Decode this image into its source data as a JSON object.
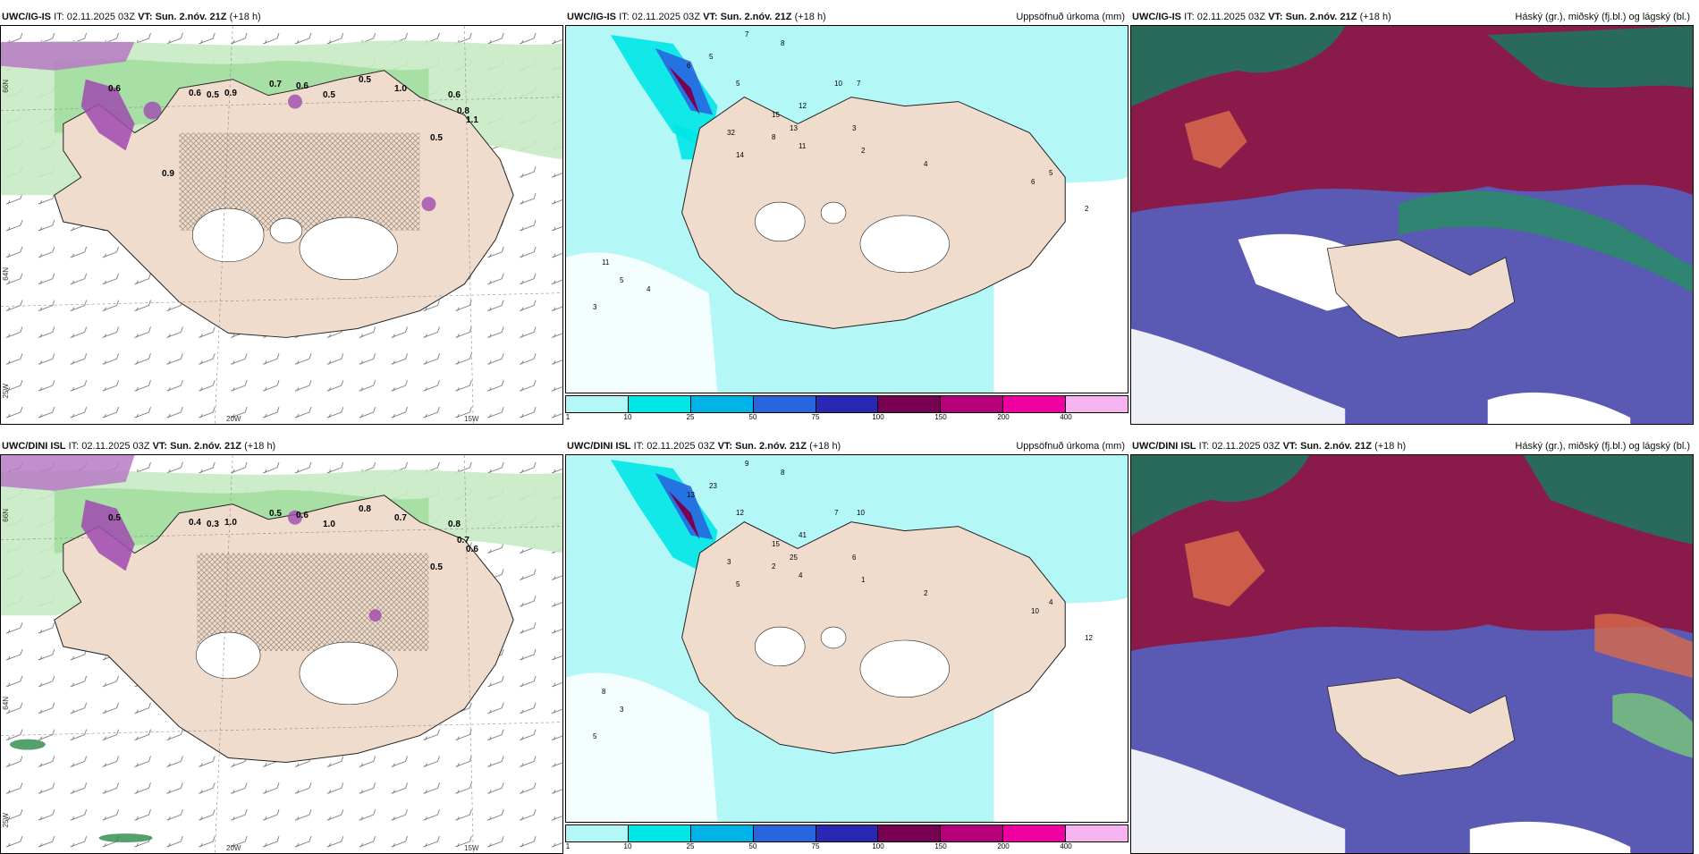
{
  "rows": [
    {
      "model": "UWC/IG-IS",
      "it_label": "IT:",
      "it_value": "02.11.2025 03Z",
      "vt_label": "VT:",
      "vt_value": "Sun. 2.nóv. 21Z",
      "lead": "(+18 h)"
    },
    {
      "model": "UWC/DINI ISL",
      "it_label": "IT:",
      "it_value": "02.11.2025 03Z",
      "vt_label": "VT:",
      "vt_value": "Sun. 2.nóv. 21Z",
      "lead": "(+18 h)"
    }
  ],
  "precip_title": "Uppsöfnuð úrkoma (mm)",
  "cloud_title": "Háský (gr.), miðský (fj.bl.) og lágský (bl.)",
  "colorbar": {
    "ticks": [
      "1",
      "10",
      "25",
      "50",
      "75",
      "100",
      "150",
      "200",
      "400"
    ],
    "colors": [
      "#b4f7f7",
      "#00e6e6",
      "#00b4e8",
      "#2866e0",
      "#2828b4",
      "#780050",
      "#b4007a",
      "#f000a0",
      "#f5b4f0"
    ]
  },
  "axes": {
    "lat_66": "66N",
    "lat_64": "64N",
    "lon_25": "25W",
    "lon_20": "20W",
    "lon_15": "15W"
  },
  "wind_labels_top": [
    "0.6",
    "0.5",
    "0.9",
    "0.7",
    "0.6",
    "0.5",
    "0.5",
    "1.0",
    "0.6",
    "0.8",
    "1.1",
    "0.5",
    "0.6",
    "0.9"
  ],
  "wind_labels_bot": [
    "0.4",
    "0.3",
    "1.0",
    "0.5",
    "0.6",
    "1.0",
    "0.8",
    "0.7",
    "0.8",
    "0.7",
    "0.6",
    "0.5",
    "0.5"
  ],
  "precip_top": [
    "7",
    "8",
    "6",
    "5",
    "5",
    "7",
    "15",
    "12",
    "13",
    "10",
    "11",
    "32",
    "14",
    "8",
    "3",
    "2",
    "4",
    "6",
    "5",
    "2",
    "11",
    "5",
    "3",
    "4"
  ],
  "precip_bot": [
    "9",
    "8",
    "13",
    "23",
    "12",
    "10",
    "15",
    "41",
    "25",
    "7",
    "4",
    "3",
    "5",
    "2",
    "6",
    "1",
    "2",
    "10",
    "4",
    "12",
    "8",
    "3",
    "5"
  ]
}
